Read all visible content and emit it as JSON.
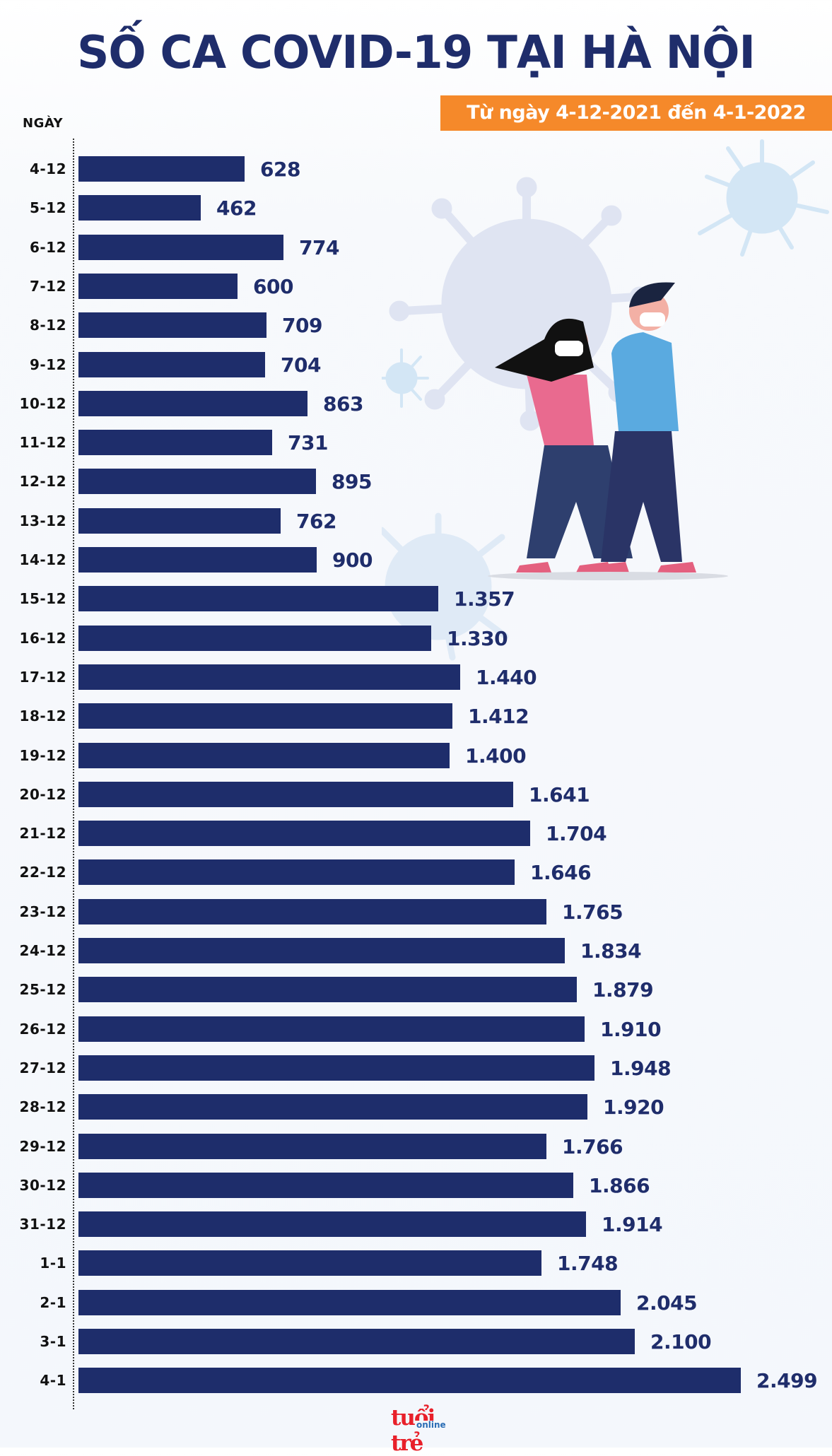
{
  "header": {
    "title": "SỐ CA COVID-19 TẠI HÀ NỘI",
    "date_range": "Từ ngày 4-12-2021 đến 4-1-2022"
  },
  "axis": {
    "y_title": "NGÀY"
  },
  "colors": {
    "bar": "#1e2d6b",
    "title": "#1f2d6b",
    "banner": "#f5892a",
    "label": "#111111",
    "logo_red": "#e8202a",
    "logo_blue": "#2a6db5"
  },
  "footer": {
    "logo_main": "tuổi trẻ",
    "logo_sub": "online"
  },
  "rows": [
    {
      "date": "4-12",
      "value": 628,
      "label": "628"
    },
    {
      "date": "5-12",
      "value": 462,
      "label": "462"
    },
    {
      "date": "6-12",
      "value": 774,
      "label": "774"
    },
    {
      "date": "7-12",
      "value": 600,
      "label": "600"
    },
    {
      "date": "8-12",
      "value": 709,
      "label": "709"
    },
    {
      "date": "9-12",
      "value": 704,
      "label": "704"
    },
    {
      "date": "10-12",
      "value": 863,
      "label": "863"
    },
    {
      "date": "11-12",
      "value": 731,
      "label": "731"
    },
    {
      "date": "12-12",
      "value": 895,
      "label": "895"
    },
    {
      "date": "13-12",
      "value": 762,
      "label": "762"
    },
    {
      "date": "14-12",
      "value": 900,
      "label": "900"
    },
    {
      "date": "15-12",
      "value": 1357,
      "label": "1.357"
    },
    {
      "date": "16-12",
      "value": 1330,
      "label": "1.330"
    },
    {
      "date": "17-12",
      "value": 1440,
      "label": "1.440"
    },
    {
      "date": "18-12",
      "value": 1412,
      "label": "1.412"
    },
    {
      "date": "19-12",
      "value": 1400,
      "label": "1.400"
    },
    {
      "date": "20-12",
      "value": 1641,
      "label": "1.641"
    },
    {
      "date": "21-12",
      "value": 1704,
      "label": "1.704"
    },
    {
      "date": "22-12",
      "value": 1646,
      "label": "1.646"
    },
    {
      "date": "23-12",
      "value": 1765,
      "label": "1.765"
    },
    {
      "date": "24-12",
      "value": 1834,
      "label": "1.834"
    },
    {
      "date": "25-12",
      "value": 1879,
      "label": "1.879"
    },
    {
      "date": "26-12",
      "value": 1910,
      "label": "1.910"
    },
    {
      "date": "27-12",
      "value": 1948,
      "label": "1.948"
    },
    {
      "date": "28-12",
      "value": 1920,
      "label": "1.920"
    },
    {
      "date": "29-12",
      "value": 1766,
      "label": "1.766"
    },
    {
      "date": "30-12",
      "value": 1866,
      "label": "1.866"
    },
    {
      "date": "31-12",
      "value": 1914,
      "label": "1.914"
    },
    {
      "date": "1-1",
      "value": 1748,
      "label": "1.748"
    },
    {
      "date": "2-1",
      "value": 2045,
      "label": "2.045"
    },
    {
      "date": "3-1",
      "value": 2100,
      "label": "2.100"
    },
    {
      "date": "4-1",
      "value": 2499,
      "label": "2.499"
    }
  ],
  "chart_data": {
    "type": "bar",
    "orientation": "horizontal",
    "title": "SỐ CA COVID-19 TẠI HÀ NỘI",
    "subtitle": "Từ ngày 4-12-2021 đến 4-1-2022",
    "xlabel": "",
    "ylabel": "NGÀY",
    "grid": false,
    "legend": null,
    "data_labels": true,
    "xlim": [
      0,
      2499
    ],
    "categories": [
      "4-12",
      "5-12",
      "6-12",
      "7-12",
      "8-12",
      "9-12",
      "10-12",
      "11-12",
      "12-12",
      "13-12",
      "14-12",
      "15-12",
      "16-12",
      "17-12",
      "18-12",
      "19-12",
      "20-12",
      "21-12",
      "22-12",
      "23-12",
      "24-12",
      "25-12",
      "26-12",
      "27-12",
      "28-12",
      "29-12",
      "30-12",
      "31-12",
      "1-1",
      "2-1",
      "3-1",
      "4-1"
    ],
    "values": [
      628,
      462,
      774,
      600,
      709,
      704,
      863,
      731,
      895,
      762,
      900,
      1357,
      1330,
      1440,
      1412,
      1400,
      1641,
      1704,
      1646,
      1765,
      1834,
      1879,
      1910,
      1948,
      1920,
      1766,
      1866,
      1914,
      1748,
      2045,
      2100,
      2499
    ],
    "series": [
      {
        "name": "Số ca COVID-19",
        "color": "#1e2d6b",
        "values": [
          628,
          462,
          774,
          600,
          709,
          704,
          863,
          731,
          895,
          762,
          900,
          1357,
          1330,
          1440,
          1412,
          1400,
          1641,
          1704,
          1646,
          1765,
          1834,
          1879,
          1910,
          1948,
          1920,
          1766,
          1866,
          1914,
          1748,
          2045,
          2100,
          2499
        ]
      }
    ]
  }
}
